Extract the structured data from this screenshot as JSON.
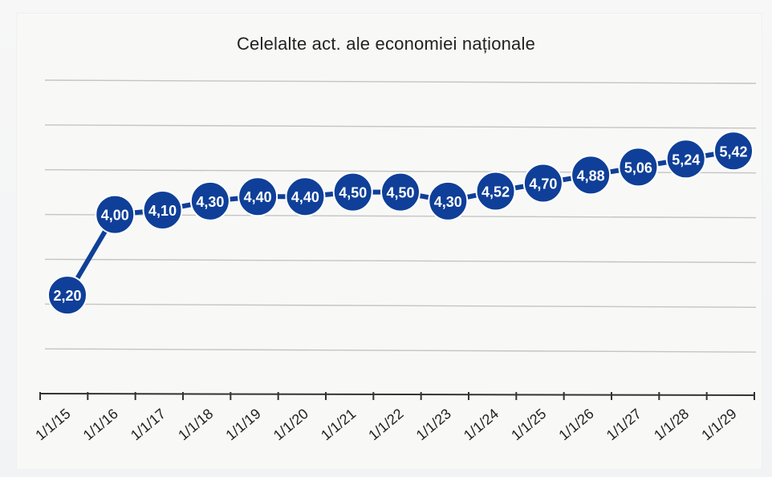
{
  "chart_data": {
    "type": "line",
    "title": "Celelalte act. ale economiei naționale",
    "categories": [
      "1/1/15",
      "1/1/16",
      "1/1/17",
      "1/1/18",
      "1/1/19",
      "1/1/20",
      "1/1/21",
      "1/1/22",
      "1/1/23",
      "1/1/24",
      "1/1/25",
      "1/1/26",
      "1/1/27",
      "1/1/28",
      "1/1/29"
    ],
    "values": [
      2.2,
      4.0,
      4.1,
      4.3,
      4.4,
      4.4,
      4.5,
      4.5,
      4.3,
      4.52,
      4.7,
      4.88,
      5.06,
      5.24,
      5.42
    ],
    "data_labels": [
      "2,20",
      "4,00",
      "4,10",
      "4,30",
      "4,40",
      "4,40",
      "4,50",
      "4,50",
      "4,30",
      "4,52",
      "4,70",
      "4,88",
      "5,06",
      "5,24",
      "5,42"
    ],
    "ylim": [
      0,
      7
    ],
    "y_tick_labels_visible": false,
    "grid": true,
    "legend": "none",
    "colors": {
      "series": "#0f3f98",
      "label_text": "#ffffff",
      "grid": "#c4c4c4",
      "axis": "#333333"
    }
  }
}
